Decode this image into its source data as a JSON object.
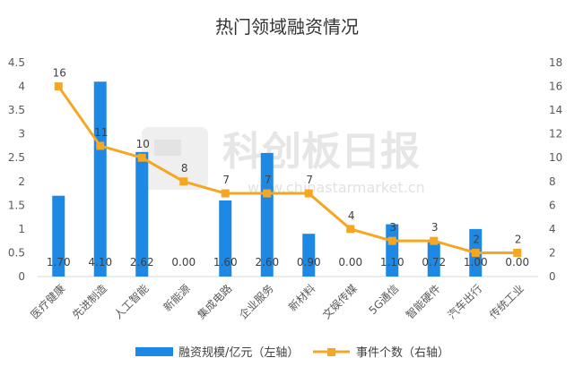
{
  "chart_data": {
    "type": "bar+line",
    "title": "热门领域融资情况",
    "categories": [
      "医疗健康",
      "先进制造",
      "人工智能",
      "新能源",
      "集成电路",
      "企业服务",
      "新材料",
      "文娱传媒",
      "5G通信",
      "智能硬件",
      "汽车出行",
      "传统工业"
    ],
    "series": [
      {
        "name": "融资规模/亿元（左轴）",
        "type": "bar",
        "axis": "left",
        "color": "#1E88E5",
        "values": [
          1.7,
          4.1,
          2.62,
          0.0,
          1.6,
          2.6,
          0.9,
          0.0,
          1.1,
          0.72,
          1.0,
          0.0
        ],
        "labels": [
          "1.70",
          "4.10",
          "2.62",
          "0.00",
          "1.60",
          "2.60",
          "0.90",
          "0.00",
          "1.10",
          "0.72",
          "1.00",
          "0.00"
        ]
      },
      {
        "name": "事件个数（右轴）",
        "type": "line",
        "axis": "right",
        "color": "#F5A623",
        "values": [
          16,
          11,
          10,
          8,
          7,
          7,
          7,
          4,
          3,
          3,
          2,
          2
        ],
        "labels": [
          "16",
          "11",
          "10",
          "8",
          "7",
          "7",
          "7",
          "4",
          "3",
          "3",
          "2",
          "2"
        ]
      }
    ],
    "y_left": {
      "min": 0,
      "max": 4.5,
      "ticks": [
        "0",
        "0.5",
        "1",
        "1.5",
        "2",
        "2.5",
        "3",
        "3.5",
        "4",
        "4.5"
      ]
    },
    "y_right": {
      "min": 0,
      "max": 18,
      "ticks": [
        "0",
        "2",
        "4",
        "6",
        "8",
        "10",
        "12",
        "14",
        "16",
        "18"
      ]
    },
    "grid": false,
    "legend_position": "bottom"
  },
  "watermark": {
    "name": "科创板日报",
    "url": "www.chinastarmarket.cn"
  }
}
